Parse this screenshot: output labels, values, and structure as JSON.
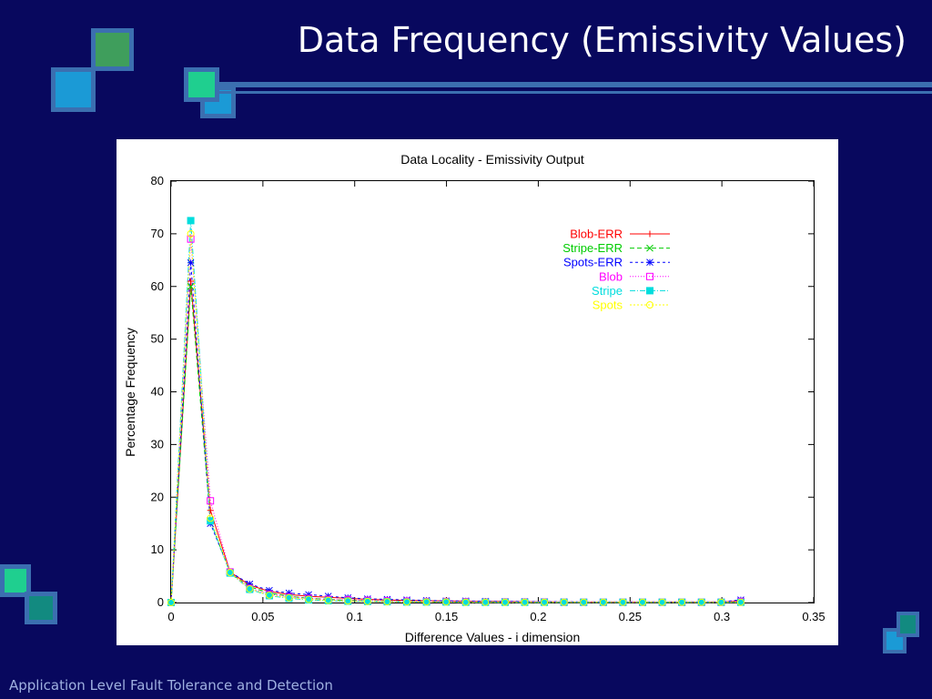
{
  "slide": {
    "title": "Data Frequency (Emissivity Values)",
    "footer": "Application Level Fault Tolerance and Detection",
    "colors": {
      "background": "#08085e",
      "square_border": "#3b6fb0",
      "square_green": "#3f9e5c",
      "square_blue": "#1b9ad6",
      "square_teal": "#1fcf8f"
    }
  },
  "chart_data": {
    "type": "line",
    "title": "Data Locality - Emissivity Output",
    "xlabel": "Difference Values - i dimension",
    "ylabel": "Percentage Frequency",
    "xlim": [
      0,
      0.35
    ],
    "ylim": [
      0,
      80
    ],
    "xticks": [
      0,
      0.05,
      0.1,
      0.15,
      0.2,
      0.25,
      0.3,
      0.35
    ],
    "xtick_labels": [
      "0",
      "0.05",
      "0.1",
      "0.15",
      "0.2",
      "0.25",
      "0.3",
      "0.35"
    ],
    "yticks": [
      0,
      10,
      20,
      30,
      40,
      50,
      60,
      70,
      80
    ],
    "ytick_labels": [
      "0",
      "10",
      "20",
      "30",
      "40",
      "50",
      "60",
      "70",
      "80"
    ],
    "grid": false,
    "legend_position": "top-right",
    "x": [
      0,
      0.0107,
      0.0214,
      0.0321,
      0.0428,
      0.0535,
      0.0642,
      0.0749,
      0.0856,
      0.0963,
      0.107,
      0.1177,
      0.1284,
      0.1391,
      0.1498,
      0.1605,
      0.1712,
      0.1819,
      0.1926,
      0.2033,
      0.214,
      0.2247,
      0.2354,
      0.2461,
      0.2568,
      0.2675,
      0.2782,
      0.2889,
      0.2996,
      0.3103
    ],
    "series": [
      {
        "name": "Blob-ERR",
        "color": "#ff0000",
        "marker": "plus",
        "dash": "",
        "values": [
          0,
          61,
          17.5,
          5.8,
          3.3,
          2.1,
          1.5,
          1.2,
          1.0,
          0.8,
          0.6,
          0.5,
          0.4,
          0.35,
          0.3,
          0.25,
          0.2,
          0.2,
          0.15,
          0.15,
          0.1,
          0.1,
          0.1,
          0.1,
          0.1,
          0.1,
          0.1,
          0.1,
          0.1,
          0.3
        ]
      },
      {
        "name": "Stripe-ERR",
        "color": "#00cc00",
        "marker": "cross",
        "dash": "5,3",
        "values": [
          0,
          60,
          15.5,
          5.6,
          3.0,
          1.8,
          1.2,
          0.8,
          0.6,
          0.4,
          0.3,
          0.25,
          0.2,
          0.15,
          0.1,
          0.1,
          0.1,
          0.1,
          0.05,
          0.05,
          0.05,
          0.05,
          0.05,
          0.05,
          0.05,
          0.05,
          0.05,
          0.05,
          0.05,
          0.1
        ]
      },
      {
        "name": "Spots-ERR",
        "color": "#0000ff",
        "marker": "star",
        "dash": "3,3",
        "values": [
          0,
          64.5,
          15,
          5.8,
          3.5,
          2.3,
          1.8,
          1.5,
          1.2,
          0.9,
          0.7,
          0.6,
          0.5,
          0.4,
          0.3,
          0.3,
          0.25,
          0.2,
          0.2,
          0.15,
          0.15,
          0.1,
          0.1,
          0.1,
          0.1,
          0.1,
          0.1,
          0.1,
          0.1,
          0.5
        ]
      },
      {
        "name": "Blob",
        "color": "#ff00ff",
        "marker": "square",
        "dash": "1,2",
        "values": [
          0,
          69,
          19.3,
          5.8,
          2.7,
          1.6,
          1.1,
          0.8,
          0.6,
          0.5,
          0.4,
          0.3,
          0.25,
          0.2,
          0.2,
          0.15,
          0.1,
          0.1,
          0.1,
          0.1,
          0.05,
          0.05,
          0.05,
          0.05,
          0.05,
          0.05,
          0.05,
          0.05,
          0.05,
          0.2
        ]
      },
      {
        "name": "Stripe",
        "color": "#00dddd",
        "marker": "filled-square",
        "dash": "6,2,1,2",
        "values": [
          0,
          72.5,
          15.5,
          5.6,
          2.5,
          1.3,
          0.8,
          0.5,
          0.35,
          0.25,
          0.2,
          0.15,
          0.1,
          0.1,
          0.1,
          0.05,
          0.05,
          0.05,
          0.05,
          0.05,
          0.05,
          0.05,
          0.05,
          0.05,
          0.05,
          0.05,
          0.05,
          0.05,
          0.05,
          0.05
        ]
      },
      {
        "name": "Spots",
        "color": "#ffff00",
        "marker": "circle",
        "dash": "2,2",
        "values": [
          0,
          70,
          16,
          5.7,
          2.6,
          1.4,
          0.9,
          0.6,
          0.4,
          0.3,
          0.2,
          0.15,
          0.1,
          0.1,
          0.1,
          0.05,
          0.05,
          0.05,
          0.05,
          0.05,
          0.05,
          0.05,
          0.05,
          0.05,
          0.05,
          0.05,
          0.05,
          0.05,
          0.05,
          0.05
        ]
      }
    ]
  }
}
